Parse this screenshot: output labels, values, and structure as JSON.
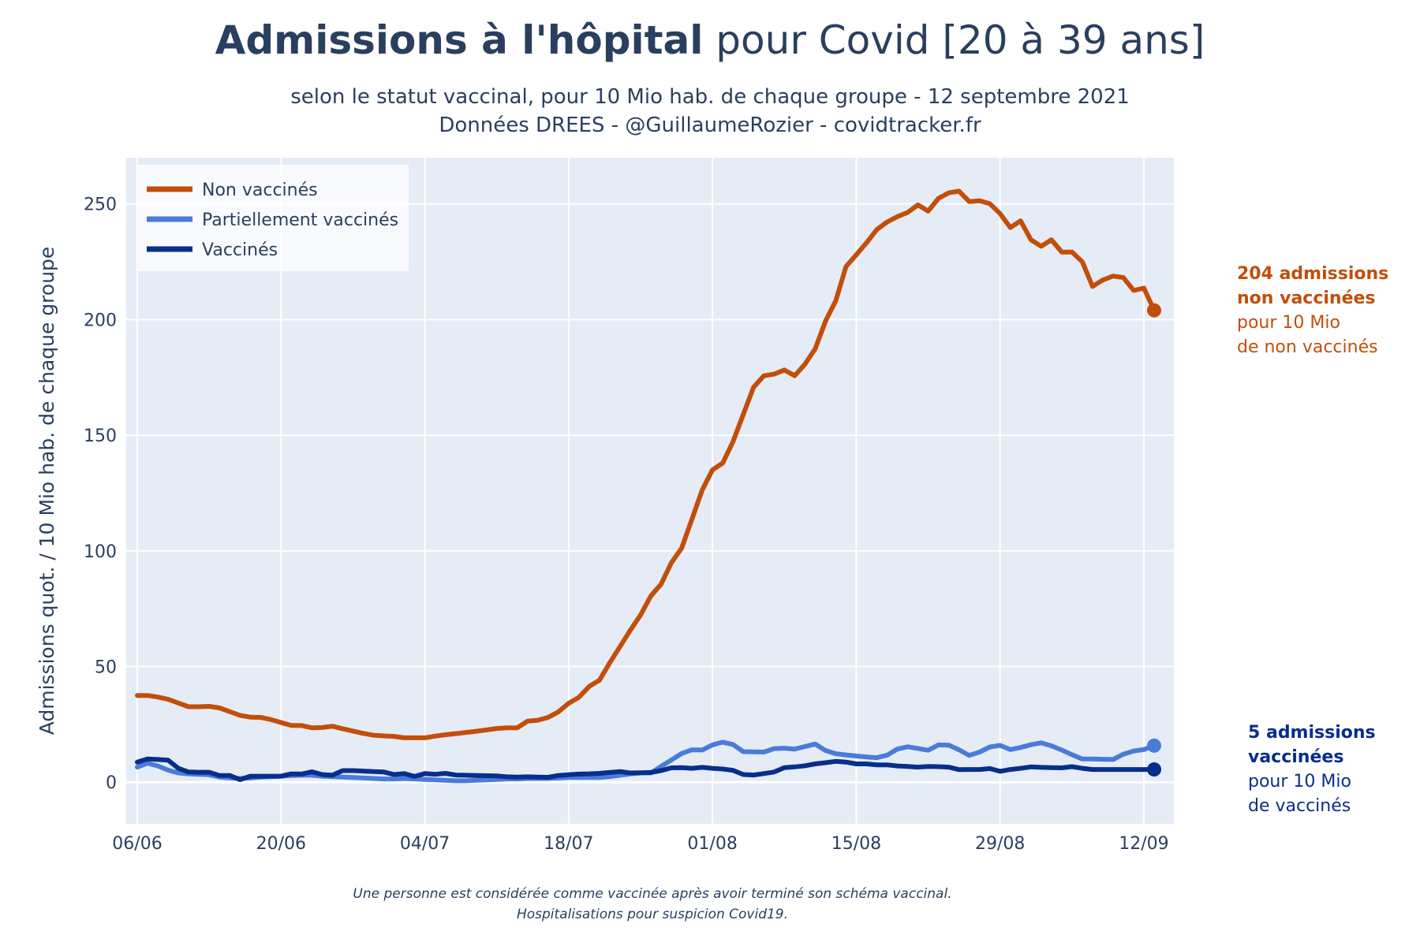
{
  "title": {
    "bold": "Admissions à l'hôpital",
    "rest": " pour Covid [20 à 39 ans]"
  },
  "subtitle": {
    "line1": "selon le statut vaccinal, pour 10 Mio hab. de chaque groupe - 12 septembre 2021",
    "line2": "Données DREES - @GuillaumeRozier - covidtracker.fr"
  },
  "footnote": {
    "line1": "Une personne est considérée comme vaccinée après avoir terminé son schéma vaccinal.",
    "line2": "Hospitalisations pour suspicion Covid19."
  },
  "annotations": {
    "non_vaccines": {
      "line1": "204 admissions",
      "line2": "non vaccinées",
      "line3": "pour 10 Mio",
      "line4": "de non vaccinés"
    },
    "vaccines": {
      "line1": "5 admissions",
      "line2": "vaccinées",
      "line3": "pour 10 Mio",
      "line4": "de vaccinés"
    }
  },
  "colors": {
    "plot_bg": "#e5ecf6",
    "grid": "#ffffff",
    "non_vaccines": "#c24e0b",
    "partiellement": "#4a7bd9",
    "vaccines": "#082e8c"
  },
  "chart_data": {
    "type": "line",
    "ylabel": "Admissions quot. / 10 Mio hab. de chaque groupe",
    "xlabel": "",
    "ylim": [
      -18,
      270
    ],
    "x_start": "2021-06-06",
    "x_ticks": [
      "06/06",
      "20/06",
      "04/07",
      "18/07",
      "01/08",
      "15/08",
      "29/08",
      "12/09"
    ],
    "y_ticks": [
      0,
      50,
      100,
      150,
      200,
      250
    ],
    "grid": true,
    "legend_position": "top-left",
    "series": [
      {
        "name": "Non vaccinés",
        "color": "#c24e0b",
        "values": [
          37.5,
          37.5,
          36.8,
          35.8,
          34.2,
          32.6,
          32.6,
          32.8,
          32.1,
          30.5,
          28.9,
          28.1,
          28.0,
          27.1,
          25.8,
          24.5,
          24.5,
          23.5,
          23.6,
          24.2,
          23.1,
          22.1,
          21.1,
          20.3,
          20.0,
          19.8,
          19.2,
          19.2,
          19.2,
          19.9,
          20.5,
          21.0,
          21.5,
          22.0,
          22.6,
          23.2,
          23.5,
          23.5,
          26.4,
          26.8,
          28.0,
          30.4,
          34.1,
          36.7,
          41.4,
          44.1,
          51.6,
          58.6,
          65.7,
          72.3,
          80.5,
          85.6,
          94.9,
          101.2,
          113.7,
          126.3,
          135.0,
          138.0,
          147.3,
          159.0,
          170.7,
          175.7,
          176.4,
          178.2,
          175.7,
          180.7,
          187.3,
          199.3,
          208.1,
          222.9,
          228.0,
          233.2,
          238.9,
          242.2,
          244.5,
          246.3,
          249.6,
          246.9,
          252.4,
          254.8,
          255.5,
          251.0,
          251.4,
          250.1,
          245.8,
          239.8,
          242.7,
          234.5,
          231.7,
          234.5,
          229.2,
          229.2,
          225.0,
          214.3,
          217.1,
          218.8,
          218.2,
          212.6,
          213.6,
          204.0
        ]
      },
      {
        "name": "Partiellement vaccinés",
        "color": "#4a7bd9",
        "values": [
          6.5,
          8.2,
          7.0,
          5.2,
          4.0,
          3.6,
          3.4,
          3.2,
          2.2,
          1.8,
          1.6,
          1.8,
          2.2,
          2.4,
          2.6,
          2.9,
          3.0,
          3.0,
          2.6,
          2.4,
          2.2,
          2.0,
          1.8,
          1.6,
          1.4,
          1.4,
          1.6,
          1.4,
          1.2,
          1.0,
          0.8,
          0.6,
          0.6,
          0.8,
          1.0,
          1.2,
          1.4,
          1.4,
          1.6,
          1.6,
          1.6,
          1.8,
          2.0,
          2.0,
          2.0,
          2.0,
          2.4,
          3.0,
          3.6,
          4.0,
          4.0,
          6.8,
          9.6,
          12.4,
          14.0,
          13.9,
          16.1,
          17.3,
          16.3,
          13.2,
          13.1,
          13.0,
          14.5,
          14.7,
          14.3,
          15.4,
          16.5,
          13.7,
          12.3,
          11.8,
          11.3,
          10.9,
          10.6,
          11.7,
          14.3,
          15.3,
          14.6,
          13.8,
          16.1,
          16.0,
          14.0,
          11.6,
          13.0,
          15.2,
          15.9,
          14.1,
          15.0,
          16.2,
          17.0,
          15.7,
          13.9,
          11.9,
          10.0,
          10.0,
          9.9,
          9.8,
          12.1,
          13.5,
          14.1,
          15.8
        ]
      },
      {
        "name": "Vaccinés",
        "color": "#082e8c",
        "values": [
          8.7,
          10.0,
          9.8,
          9.5,
          6.0,
          4.4,
          4.3,
          4.3,
          2.9,
          2.9,
          1.1,
          2.6,
          2.6,
          2.6,
          2.6,
          3.6,
          3.5,
          4.5,
          3.3,
          3.0,
          5.0,
          5.0,
          4.8,
          4.6,
          4.4,
          3.3,
          3.7,
          2.5,
          3.7,
          3.4,
          3.8,
          3.1,
          3.0,
          2.9,
          2.8,
          2.7,
          2.3,
          2.2,
          2.3,
          2.2,
          2.1,
          2.9,
          3.2,
          3.5,
          3.6,
          3.8,
          4.2,
          4.6,
          4.0,
          4.1,
          4.2,
          5.0,
          6.2,
          6.3,
          6.0,
          6.4,
          6.0,
          5.7,
          5.1,
          3.3,
          3.1,
          3.7,
          4.4,
          6.3,
          6.6,
          7.1,
          7.9,
          8.4,
          9.0,
          8.7,
          7.9,
          7.9,
          7.5,
          7.5,
          7.0,
          6.8,
          6.5,
          6.8,
          6.7,
          6.5,
          5.4,
          5.5,
          5.5,
          5.9,
          4.7,
          5.5,
          6.0,
          6.6,
          6.4,
          6.3,
          6.2,
          6.7,
          6.0,
          5.5,
          5.5,
          5.5,
          5.5,
          5.5,
          5.5,
          5.5
        ]
      }
    ]
  }
}
